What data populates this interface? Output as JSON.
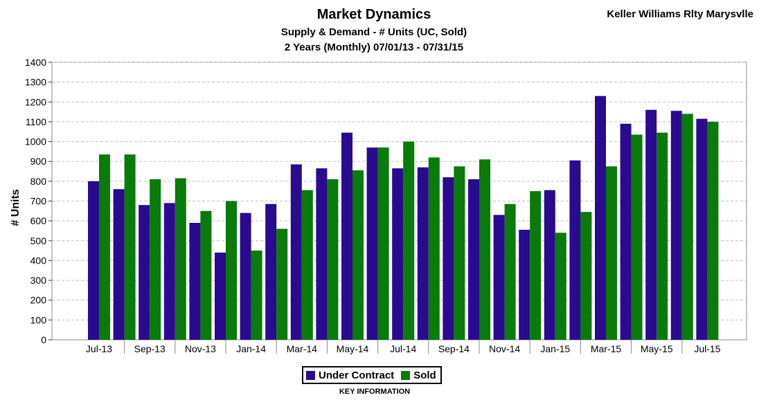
{
  "header": {
    "title": "Market Dynamics",
    "subtitle": "Supply & Demand - # Units (UC, Sold)",
    "period": "2 Years (Monthly) 07/01/13 - 07/31/15",
    "brand": "Keller Williams Rlty Marysvlle"
  },
  "legend": {
    "items": [
      {
        "label": "Under Contract",
        "color": "#2a0a8f"
      },
      {
        "label": "Sold",
        "color": "#0a7a0a"
      }
    ],
    "caption": "KEY INFORMATION"
  },
  "chart_data": {
    "type": "bar",
    "ylabel": "# Units",
    "xlabel": "",
    "ylim": [
      0,
      1400
    ],
    "yticks": [
      0,
      100,
      200,
      300,
      400,
      500,
      600,
      700,
      800,
      900,
      1000,
      1100,
      1200,
      1300,
      1400
    ],
    "grid": true,
    "x_tick_labels": [
      "Jul-13",
      "Sep-13",
      "Nov-13",
      "Jan-14",
      "Mar-14",
      "May-14",
      "Jul-14",
      "Sep-14",
      "Nov-14",
      "Jan-15",
      "Mar-15",
      "May-15",
      "Jul-15"
    ],
    "categories": [
      "Jul-13",
      "Aug-13",
      "Sep-13",
      "Oct-13",
      "Nov-13",
      "Dec-13",
      "Jan-14",
      "Feb-14",
      "Mar-14",
      "Apr-14",
      "May-14",
      "Jun-14",
      "Jul-14",
      "Aug-14",
      "Sep-14",
      "Oct-14",
      "Nov-14",
      "Dec-14",
      "Jan-15",
      "Feb-15",
      "Mar-15",
      "Apr-15",
      "May-15",
      "Jun-15",
      "Jul-15"
    ],
    "series": [
      {
        "name": "Under Contract",
        "color": "#2a0a8f",
        "values": [
          800,
          760,
          680,
          690,
          590,
          440,
          640,
          685,
          885,
          865,
          1045,
          970,
          865,
          870,
          820,
          810,
          630,
          555,
          755,
          905,
          1230,
          1090,
          1160,
          1155,
          1115
        ]
      },
      {
        "name": "Sold",
        "color": "#0a7a0a",
        "values": [
          935,
          935,
          810,
          815,
          650,
          700,
          450,
          560,
          755,
          810,
          855,
          970,
          1000,
          920,
          875,
          910,
          685,
          750,
          540,
          645,
          875,
          1035,
          1045,
          1140,
          1100
        ]
      }
    ]
  }
}
